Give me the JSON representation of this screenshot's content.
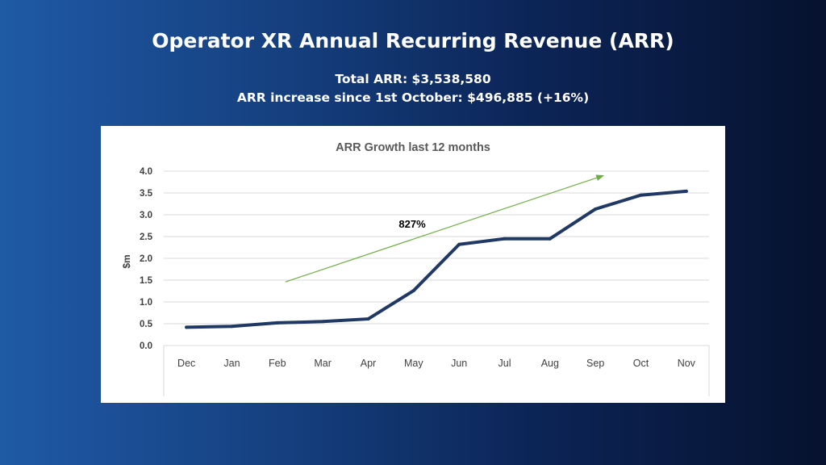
{
  "header": {
    "title": "Operator XR Annual Recurring Revenue (ARR)",
    "total_arr": "Total ARR: $3,538,580",
    "arr_increase": "ARR increase since 1st October: $496,885 (+16%)"
  },
  "chart_data": {
    "type": "line",
    "title": "ARR Growth last 12 months",
    "xlabel": "",
    "ylabel": "$m",
    "categories": [
      "Dec",
      "Jan",
      "Feb",
      "Mar",
      "Apr",
      "May",
      "Jun",
      "Jul",
      "Aug",
      "Sep",
      "Oct",
      "Nov"
    ],
    "values": [
      0.42,
      0.44,
      0.52,
      0.55,
      0.61,
      1.26,
      2.32,
      2.45,
      2.45,
      3.13,
      3.45,
      3.54
    ],
    "ylim": [
      0,
      4
    ],
    "yticks": [
      "0.0",
      "0.5",
      "1.0",
      "1.5",
      "2.0",
      "2.5",
      "3.0",
      "3.5",
      "4.0"
    ],
    "grid": true,
    "legend": "none",
    "line_color": "#1f3864",
    "trend": {
      "label": "827%",
      "color": "#70ad47",
      "from": {
        "x": "Feb",
        "y": 1.46
      },
      "to": {
        "x": "Sep",
        "y": 3.9
      }
    }
  }
}
